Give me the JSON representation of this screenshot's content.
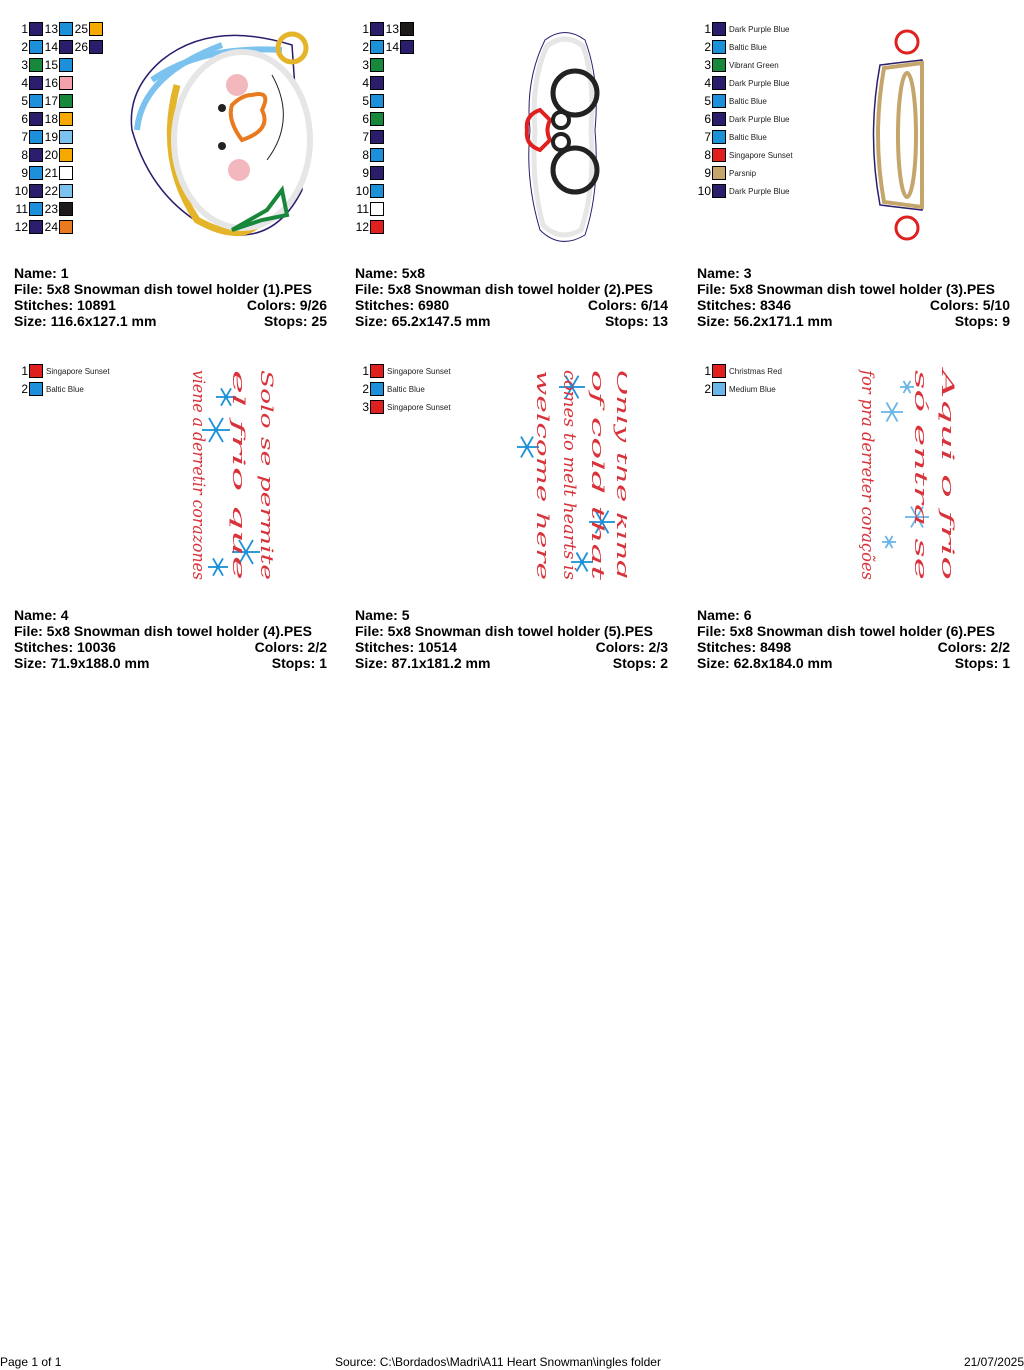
{
  "labels": {
    "name": "Name:",
    "file": "File:",
    "stitches": "Stitches:",
    "size": "Size:",
    "colors": "Colors:",
    "stops": "Stops:"
  },
  "palette": {
    "dark_purple_blue": "#2b1c6c",
    "baltic_blue": "#1c90d8",
    "vibrant_green": "#17873b",
    "pink": "#f2a2ab",
    "gold": "#f6aa00",
    "light_blue": "#7bc3ee",
    "white": "#ffffff",
    "black": "#1e1a1a",
    "orange": "#e97a1f",
    "red": "#e0201f",
    "parsnip": "#c4a66c",
    "medium_blue": "#6ab6e8"
  },
  "designs": [
    {
      "name": "1",
      "file": "5x8 Snowman dish towel holder (1).PES",
      "stitches": "10891",
      "colors": "9/26",
      "size": "116.6x127.1 mm",
      "stops": "25",
      "swatches": [
        {
          "n": "1",
          "c": "#2b1c6c"
        },
        {
          "n": "2",
          "c": "#1c90d8"
        },
        {
          "n": "3",
          "c": "#17873b"
        },
        {
          "n": "4",
          "c": "#2b1c6c"
        },
        {
          "n": "5",
          "c": "#1c90d8"
        },
        {
          "n": "6",
          "c": "#2b1c6c"
        },
        {
          "n": "7",
          "c": "#1c90d8"
        },
        {
          "n": "8",
          "c": "#2b1c6c"
        },
        {
          "n": "9",
          "c": "#1c90d8"
        },
        {
          "n": "10",
          "c": "#2b1c6c"
        },
        {
          "n": "11",
          "c": "#1c90d8"
        },
        {
          "n": "12",
          "c": "#2b1c6c"
        },
        {
          "n": "13",
          "c": "#1c90d8"
        },
        {
          "n": "14",
          "c": "#2b1c6c"
        },
        {
          "n": "15",
          "c": "#1c90d8"
        },
        {
          "n": "16",
          "c": "#f2a2ab"
        },
        {
          "n": "17",
          "c": "#17873b"
        },
        {
          "n": "18",
          "c": "#f6aa00"
        },
        {
          "n": "19",
          "c": "#7bc3ee"
        },
        {
          "n": "20",
          "c": "#f6aa00"
        },
        {
          "n": "21",
          "c": "#ffffff"
        },
        {
          "n": "22",
          "c": "#7bc3ee"
        },
        {
          "n": "23",
          "c": "#1e1a1a"
        },
        {
          "n": "24",
          "c": "#e97a1f"
        },
        {
          "n": "25",
          "c": "#f6aa00"
        },
        {
          "n": "26",
          "c": "#2b1c6c"
        }
      ]
    },
    {
      "name": "5x8",
      "file": "5x8 Snowman dish towel holder (2).PES",
      "stitches": "6980",
      "colors": "6/14",
      "size": "65.2x147.5 mm",
      "stops": "13",
      "swatches": [
        {
          "n": "1",
          "c": "#2b1c6c"
        },
        {
          "n": "2",
          "c": "#1c90d8"
        },
        {
          "n": "3",
          "c": "#17873b"
        },
        {
          "n": "4",
          "c": "#2b1c6c"
        },
        {
          "n": "5",
          "c": "#1c90d8"
        },
        {
          "n": "6",
          "c": "#17873b"
        },
        {
          "n": "7",
          "c": "#2b1c6c"
        },
        {
          "n": "8",
          "c": "#1c90d8"
        },
        {
          "n": "9",
          "c": "#2b1c6c"
        },
        {
          "n": "10",
          "c": "#1c90d8"
        },
        {
          "n": "11",
          "c": "#ffffff"
        },
        {
          "n": "12",
          "c": "#e0201f"
        },
        {
          "n": "13",
          "c": "#1e1a1a"
        },
        {
          "n": "14",
          "c": "#2b1c6c"
        }
      ]
    },
    {
      "name": "3",
      "file": "5x8 Snowman dish towel holder (3).PES",
      "stitches": "8346",
      "colors": "5/10",
      "size": "56.2x171.1 mm",
      "stops": "9",
      "swatches": [
        {
          "n": "1",
          "c": "#2b1c6c",
          "name": "Dark Purple Blue"
        },
        {
          "n": "2",
          "c": "#1c90d8",
          "name": "Baltic Blue"
        },
        {
          "n": "3",
          "c": "#17873b",
          "name": "Vibrant Green"
        },
        {
          "n": "4",
          "c": "#2b1c6c",
          "name": "Dark Purple Blue"
        },
        {
          "n": "5",
          "c": "#1c90d8",
          "name": "Baltic Blue"
        },
        {
          "n": "6",
          "c": "#2b1c6c",
          "name": "Dark Purple Blue"
        },
        {
          "n": "7",
          "c": "#1c90d8",
          "name": "Baltic Blue"
        },
        {
          "n": "8",
          "c": "#e0201f",
          "name": "Singapore Sunset"
        },
        {
          "n": "9",
          "c": "#c4a66c",
          "name": "Parsnip"
        },
        {
          "n": "10",
          "c": "#2b1c6c",
          "name": "Dark Purple Blue"
        }
      ]
    },
    {
      "name": "4",
      "file": "5x8 Snowman dish towel holder (4).PES",
      "stitches": "10036",
      "colors": "2/2",
      "size": "71.9x188.0 mm",
      "stops": "1",
      "swatches": [
        {
          "n": "1",
          "c": "#e0201f",
          "name": "Singapore Sunset"
        },
        {
          "n": "2",
          "c": "#1c90d8",
          "name": "Baltic Blue"
        }
      ],
      "design_text": [
        "Solo se permite",
        "el frio que",
        "viene a derretir corazones"
      ]
    },
    {
      "name": "5",
      "file": "5x8 Snowman dish towel holder (5).PES",
      "stitches": "10514",
      "colors": "2/3",
      "size": "87.1x181.2 mm",
      "stops": "2",
      "swatches": [
        {
          "n": "1",
          "c": "#e0201f",
          "name": "Singapore Sunset"
        },
        {
          "n": "2",
          "c": "#1c90d8",
          "name": "Baltic Blue"
        },
        {
          "n": "3",
          "c": "#e0201f",
          "name": "Singapore Sunset"
        }
      ],
      "design_text": [
        "Only the kind",
        "of cold that",
        "comes to melt hearts is",
        "welcome here"
      ]
    },
    {
      "name": "6",
      "file": "5x8 Snowman dish towel holder (6).PES",
      "stitches": "8498",
      "colors": "2/2",
      "size": "62.8x184.0 mm",
      "stops": "1",
      "swatches": [
        {
          "n": "1",
          "c": "#e0201f",
          "name": "Christmas Red"
        },
        {
          "n": "2",
          "c": "#6ab6e8",
          "name": "Medium Blue"
        }
      ],
      "design_text": [
        "Aqui o frio",
        "só entra se",
        "for pra derreter corações"
      ]
    }
  ],
  "footer": {
    "page": "Page 1 of 1",
    "source": "Source: C:\\Bordados\\Madri\\A11 Heart Snowman\\ingles folder",
    "date": "21/07/2025"
  }
}
